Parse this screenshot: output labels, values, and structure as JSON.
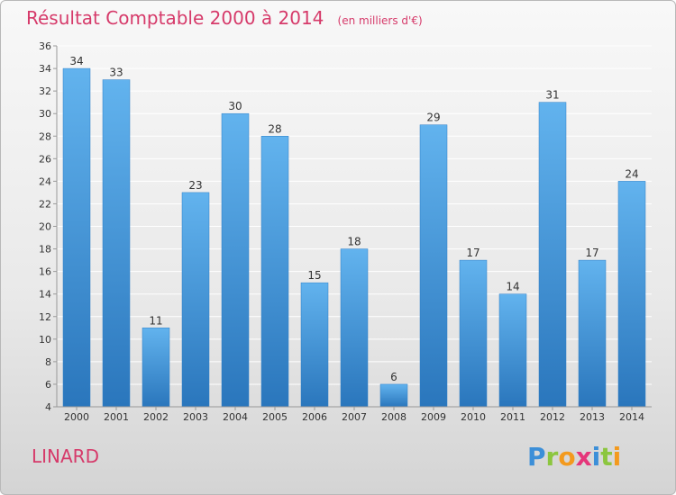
{
  "title": "Résultat Comptable 2000 à 2014",
  "unit_note": "(en milliers d'€)",
  "commune": "LINARD",
  "logo": {
    "letters": [
      "P",
      "r",
      "o",
      "x",
      "i",
      "t",
      "i"
    ],
    "colors": [
      "#3c8fd8",
      "#8cc63f",
      "#f39a1e",
      "#e5367a",
      "#3c8fd8",
      "#8cc63f",
      "#f39a1e"
    ]
  },
  "colors": {
    "bar_top": "#62b3ee",
    "bar_bottom": "#2a76bc",
    "title": "#d63a6a",
    "grid": "#ffffff"
  },
  "chart_data": {
    "type": "bar",
    "title": "Résultat Comptable 2000 à 2014",
    "xlabel": "",
    "ylabel": "",
    "unit": "en milliers d'€",
    "categories": [
      "2000",
      "2001",
      "2002",
      "2003",
      "2004",
      "2005",
      "2006",
      "2007",
      "2008",
      "2009",
      "2010",
      "2011",
      "2012",
      "2013",
      "2014"
    ],
    "values": [
      34,
      33,
      11,
      23,
      30,
      28,
      15,
      18,
      6,
      29,
      17,
      14,
      31,
      17,
      24
    ],
    "ylim": [
      4,
      36
    ],
    "yticks": [
      4,
      6,
      8,
      10,
      12,
      14,
      16,
      18,
      20,
      22,
      24,
      26,
      28,
      30,
      32,
      34,
      36
    ],
    "grid": true,
    "legend": "none"
  }
}
